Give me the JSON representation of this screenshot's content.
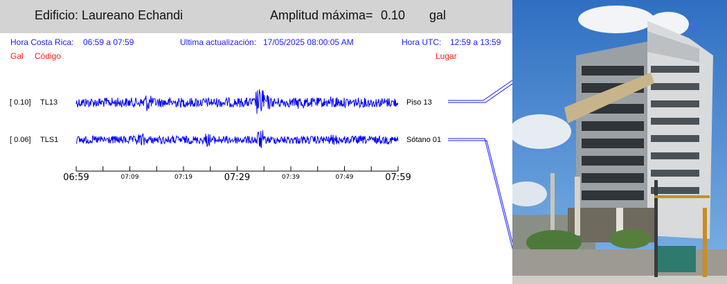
{
  "header": {
    "building_label": "Edificio:",
    "building_name": "Laureano Echandi",
    "amplitude_label": "Amplitud máxima=",
    "amplitude_value": "0.10",
    "amplitude_unit": "gal"
  },
  "info": {
    "cr_label": "Hora Costa Rica:",
    "cr_range": "06:59 a 07:59",
    "update_label": "Ultima actualización:",
    "update_value": "17/05/2025 08:00:05 AM",
    "utc_label": "Hora UTC:",
    "utc_range": "12:59 a 13:59"
  },
  "columns": {
    "gal": "Gal",
    "code": "Código",
    "place": "Lugar"
  },
  "chart_data": {
    "type": "line",
    "series": [
      {
        "amplitude": "[   0.10]",
        "code": "TL13",
        "place": "Piso 13",
        "peak": 0.1
      },
      {
        "amplitude": "[   0.06]",
        "code": "TLS1",
        "place": "Sótano 01",
        "peak": 0.06
      }
    ],
    "time_ticks": [
      "06:59",
      "07:09",
      "07:19",
      "07:29",
      "07:39",
      "07:49",
      "07:59"
    ],
    "colors": {
      "trace": "#0000ff"
    }
  },
  "photo": {
    "icon": "building-photo"
  }
}
